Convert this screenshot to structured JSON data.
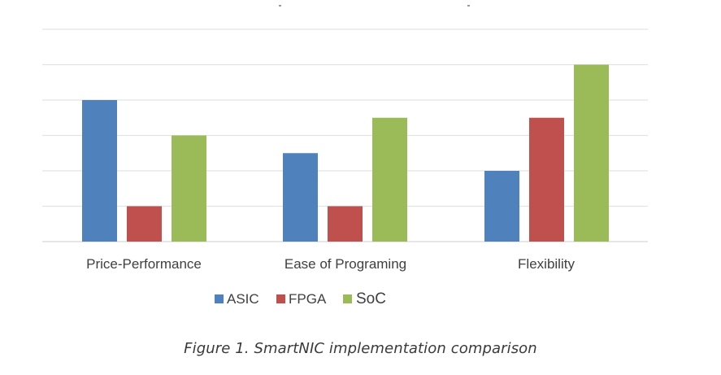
{
  "chart_data": {
    "type": "bar",
    "title": "",
    "xlabel": "",
    "ylabel": "",
    "ylim": [
      0,
      6
    ],
    "grid": true,
    "legend": "bottom-center",
    "categories": [
      "Price-Performance",
      "Ease of Programing",
      "Flexibility"
    ],
    "series": [
      {
        "name": "ASIC",
        "color": "#4f81bd",
        "values": [
          4,
          2.5,
          2
        ]
      },
      {
        "name": "FPGA",
        "color": "#c0504d",
        "values": [
          1,
          1,
          3.5
        ]
      },
      {
        "name": "SoC",
        "color": "#9bbb59",
        "values": [
          3,
          3.5,
          5
        ]
      }
    ]
  },
  "caption": "Figure 1. SmartNIC implementation comparison"
}
